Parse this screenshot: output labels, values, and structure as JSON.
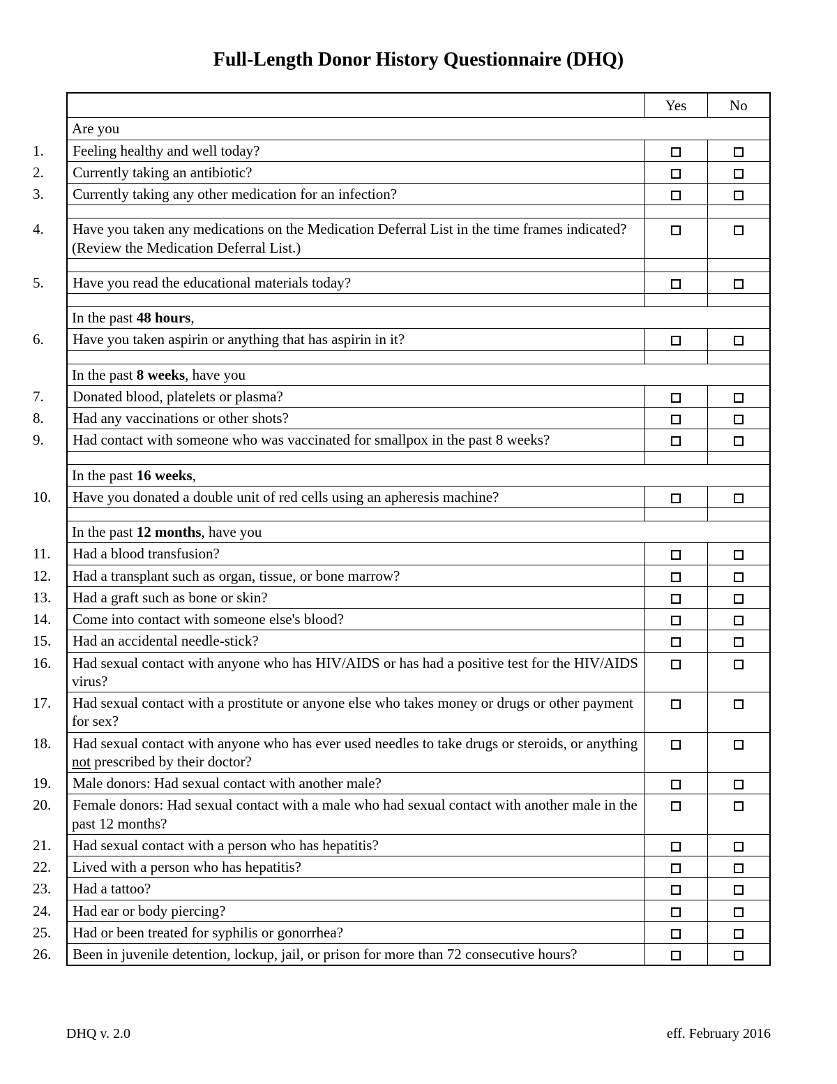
{
  "title": "Full-Length Donor History Questionnaire (DHQ)",
  "columns": {
    "yes": "Yes",
    "no": "No"
  },
  "sections": {
    "s1": {
      "prefix": "Are you",
      "bold": ""
    },
    "s2": {
      "prefix": "In the past ",
      "bold": "48 hours",
      "suffix": ","
    },
    "s3": {
      "prefix": "In the past ",
      "bold": "8 weeks",
      "suffix": ", have you"
    },
    "s4": {
      "prefix": "In the past ",
      "bold": "16 weeks",
      "suffix": ","
    },
    "s5": {
      "prefix": "In the past ",
      "bold": "12 months",
      "suffix": ", have you"
    }
  },
  "q": {
    "1": "Feeling healthy and well today?",
    "2": "Currently taking an antibiotic?",
    "3": "Currently taking any other medication for an infection?",
    "4": "Have you taken any medications on the Medication Deferral List in the time frames indicated? (Review the Medication Deferral List.)",
    "5": "Have you read the educational materials today?",
    "6": "Have you taken aspirin or anything that has aspirin in it?",
    "7": "Donated blood, platelets or plasma?",
    "8": "Had any vaccinations or other shots?",
    "9": "Had contact with someone who was vaccinated for smallpox in the past 8 weeks?",
    "10": "Have you donated a double unit of red cells using an apheresis machine?",
    "11": "Had a blood transfusion?",
    "12": "Had a transplant such as organ, tissue, or bone marrow?",
    "13": "Had a graft such as bone or skin?",
    "14": "Come into contact with someone else's blood?",
    "15": "Had an accidental needle-stick?",
    "16": "Had sexual contact with anyone who has HIV/AIDS or has had a positive test for the HIV/AIDS virus?",
    "17": "Had sexual contact with a prostitute or anyone else who takes money or drugs or other payment for sex?",
    "18a": "Had sexual contact with anyone who has ever used needles to take drugs or steroids, or anything ",
    "18u": "not",
    "18b": " prescribed by their doctor?",
    "19": "Male donors: Had sexual contact with another male?",
    "20": "Female donors: Had sexual contact with a male who had sexual contact with another male in the past 12 months?",
    "21": "Had sexual contact with a person who has hepatitis?",
    "22": "Lived with a person who has hepatitis?",
    "23": "Had a tattoo?",
    "24": "Had ear or body piercing?",
    "25": "Had or been treated for syphilis or gonorrhea?",
    "26": "Been in juvenile detention, lockup, jail, or prison for more than 72 consecutive hours?"
  },
  "footer": {
    "left": "DHQ v. 2.0",
    "right": "eff. February 2016"
  }
}
